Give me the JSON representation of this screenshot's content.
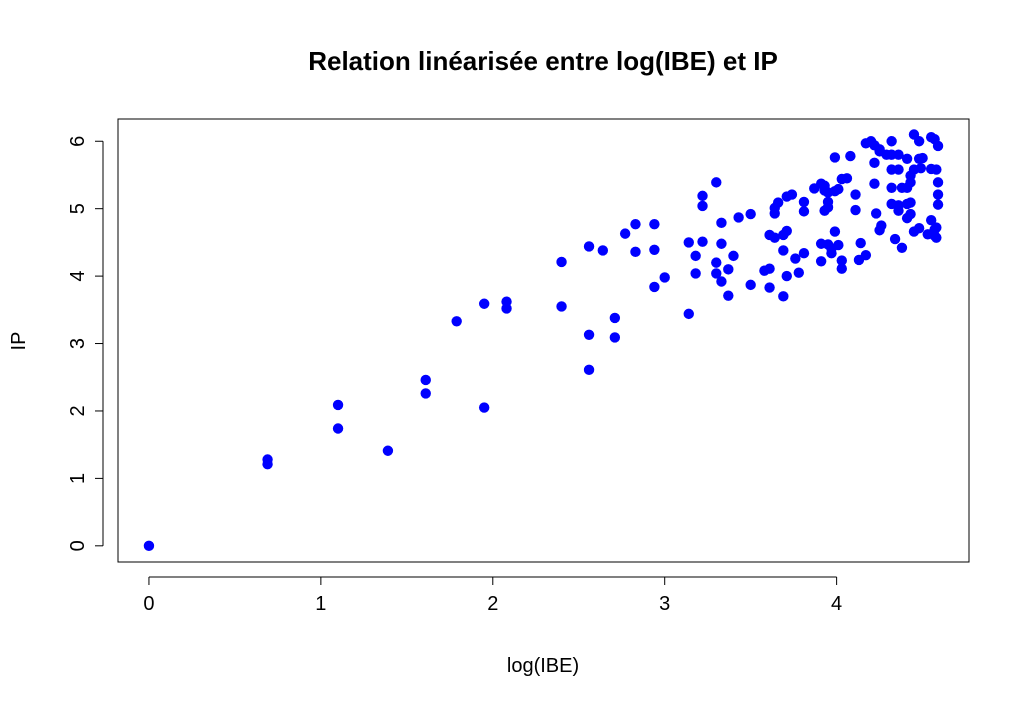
{
  "chart_data": {
    "type": "scatter",
    "title": "Relation linéarisée entre log(IBE) et IP",
    "xlabel": "log(IBE)",
    "ylabel": "IP",
    "xlim": [
      -0.18,
      4.77
    ],
    "ylim": [
      -0.24,
      6.33
    ],
    "xticks": [
      0,
      1,
      2,
      3,
      4
    ],
    "yticks": [
      0,
      1,
      2,
      3,
      4,
      5,
      6
    ],
    "grid": false,
    "marker_color": "#0000ff",
    "series": [
      {
        "points": [
          [
            0.0,
            0.0
          ],
          [
            0.69,
            1.21
          ],
          [
            0.69,
            1.28
          ],
          [
            1.1,
            1.74
          ],
          [
            1.1,
            2.09
          ],
          [
            1.39,
            1.41
          ],
          [
            1.61,
            2.26
          ],
          [
            1.61,
            2.46
          ],
          [
            1.79,
            3.33
          ],
          [
            1.95,
            2.05
          ],
          [
            1.95,
            3.59
          ],
          [
            2.08,
            3.52
          ],
          [
            2.08,
            3.62
          ],
          [
            2.4,
            3.55
          ],
          [
            2.4,
            4.21
          ],
          [
            2.56,
            2.61
          ],
          [
            2.56,
            3.13
          ],
          [
            2.56,
            4.44
          ],
          [
            2.64,
            4.38
          ],
          [
            2.71,
            3.09
          ],
          [
            2.71,
            3.38
          ],
          [
            2.77,
            4.63
          ],
          [
            2.83,
            4.36
          ],
          [
            2.83,
            4.77
          ],
          [
            2.94,
            3.84
          ],
          [
            2.94,
            4.39
          ],
          [
            2.94,
            4.77
          ],
          [
            3.0,
            3.98
          ],
          [
            3.14,
            3.44
          ],
          [
            3.14,
            4.5
          ],
          [
            3.18,
            4.04
          ],
          [
            3.18,
            4.3
          ],
          [
            3.22,
            4.51
          ],
          [
            3.22,
            5.04
          ],
          [
            3.22,
            5.19
          ],
          [
            3.3,
            4.04
          ],
          [
            3.3,
            4.2
          ],
          [
            3.3,
            5.39
          ],
          [
            3.33,
            3.92
          ],
          [
            3.33,
            4.48
          ],
          [
            3.33,
            4.79
          ],
          [
            3.37,
            3.71
          ],
          [
            3.37,
            4.1
          ],
          [
            3.4,
            4.3
          ],
          [
            3.43,
            4.87
          ],
          [
            3.5,
            3.87
          ],
          [
            3.5,
            4.92
          ],
          [
            3.58,
            4.08
          ],
          [
            3.61,
            3.83
          ],
          [
            3.61,
            4.11
          ],
          [
            3.61,
            4.61
          ],
          [
            3.64,
            4.57
          ],
          [
            3.64,
            4.93
          ],
          [
            3.64,
            5.01
          ],
          [
            3.66,
            5.09
          ],
          [
            3.69,
            3.7
          ],
          [
            3.69,
            4.38
          ],
          [
            3.69,
            4.61
          ],
          [
            3.71,
            4.0
          ],
          [
            3.71,
            4.67
          ],
          [
            3.71,
            5.18
          ],
          [
            3.74,
            5.21
          ],
          [
            3.76,
            4.26
          ],
          [
            3.78,
            4.05
          ],
          [
            3.81,
            4.34
          ],
          [
            3.81,
            4.96
          ],
          [
            3.81,
            5.1
          ],
          [
            3.87,
            5.3
          ],
          [
            3.91,
            4.22
          ],
          [
            3.91,
            4.48
          ],
          [
            3.91,
            5.37
          ],
          [
            3.93,
            4.97
          ],
          [
            3.93,
            5.27
          ],
          [
            3.93,
            5.34
          ],
          [
            3.95,
            4.47
          ],
          [
            3.95,
            5.02
          ],
          [
            3.95,
            5.1
          ],
          [
            3.95,
            5.24
          ],
          [
            3.97,
            4.34
          ],
          [
            3.97,
            4.41
          ],
          [
            3.99,
            4.66
          ],
          [
            3.99,
            5.26
          ],
          [
            3.99,
            5.76
          ],
          [
            4.01,
            4.46
          ],
          [
            4.01,
            5.29
          ],
          [
            4.03,
            4.11
          ],
          [
            4.03,
            4.23
          ],
          [
            4.03,
            5.44
          ],
          [
            4.06,
            5.45
          ],
          [
            4.08,
            5.78
          ],
          [
            4.11,
            4.98
          ],
          [
            4.11,
            5.21
          ],
          [
            4.13,
            4.24
          ],
          [
            4.14,
            4.49
          ],
          [
            4.17,
            4.31
          ],
          [
            4.17,
            5.97
          ],
          [
            4.2,
            6.0
          ],
          [
            4.22,
            5.37
          ],
          [
            4.22,
            5.68
          ],
          [
            4.22,
            5.94
          ],
          [
            4.23,
            4.93
          ],
          [
            4.25,
            4.68
          ],
          [
            4.25,
            5.85
          ],
          [
            4.25,
            5.88
          ],
          [
            4.26,
            4.75
          ],
          [
            4.29,
            5.8
          ],
          [
            4.32,
            5.07
          ],
          [
            4.32,
            5.31
          ],
          [
            4.32,
            5.58
          ],
          [
            4.32,
            5.8
          ],
          [
            4.32,
            6.0
          ],
          [
            4.34,
            4.55
          ],
          [
            4.36,
            4.97
          ],
          [
            4.36,
            5.05
          ],
          [
            4.36,
            5.58
          ],
          [
            4.36,
            5.8
          ],
          [
            4.38,
            4.42
          ],
          [
            4.38,
            5.31
          ],
          [
            4.41,
            4.86
          ],
          [
            4.41,
            5.07
          ],
          [
            4.41,
            5.31
          ],
          [
            4.41,
            5.74
          ],
          [
            4.43,
            4.92
          ],
          [
            4.43,
            5.09
          ],
          [
            4.43,
            5.39
          ],
          [
            4.43,
            5.49
          ],
          [
            4.45,
            4.66
          ],
          [
            4.45,
            5.58
          ],
          [
            4.45,
            6.1
          ],
          [
            4.48,
            4.71
          ],
          [
            4.48,
            5.74
          ],
          [
            4.48,
            6.0
          ],
          [
            4.49,
            5.6
          ],
          [
            4.5,
            5.75
          ],
          [
            4.53,
            4.62
          ],
          [
            4.55,
            4.83
          ],
          [
            4.55,
            5.59
          ],
          [
            4.55,
            6.06
          ],
          [
            4.57,
            4.6
          ],
          [
            4.57,
            4.69
          ],
          [
            4.57,
            6.03
          ],
          [
            4.58,
            4.57
          ],
          [
            4.58,
            4.72
          ],
          [
            4.58,
            5.58
          ],
          [
            4.59,
            5.06
          ],
          [
            4.59,
            5.21
          ],
          [
            4.59,
            5.39
          ],
          [
            4.59,
            5.93
          ]
        ]
      }
    ]
  }
}
